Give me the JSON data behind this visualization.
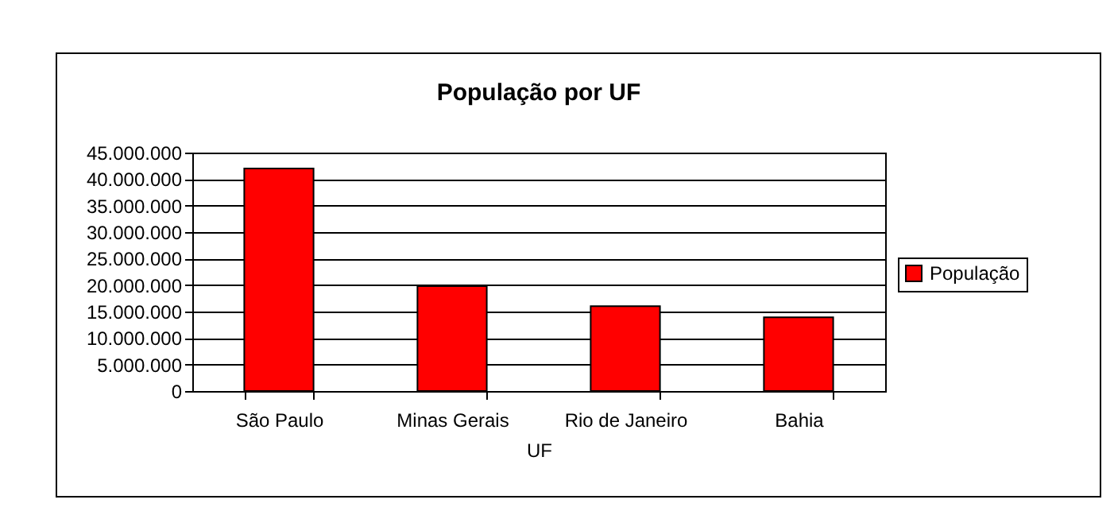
{
  "chart_data": {
    "type": "bar",
    "title": "População por UF",
    "xlabel": "UF",
    "categories": [
      "São Paulo",
      "Minas Gerais",
      "Rio de Janeiro",
      "Bahia"
    ],
    "series": [
      {
        "name": "População",
        "color": "#ff0000",
        "values": [
          42000000,
          19800000,
          16000000,
          13900000
        ]
      }
    ],
    "ylim": [
      0,
      45000000
    ],
    "yticks": [
      0,
      {
        "value": 5000000,
        "label": "5.000.000"
      },
      {
        "value": 10000000,
        "label": "10.000.000"
      },
      {
        "value": 15000000,
        "label": "15.000.000"
      },
      {
        "value": 20000000,
        "label": "20.000.000"
      },
      {
        "value": 25000000,
        "label": "25.000.000"
      },
      {
        "value": 30000000,
        "label": "30.000.000"
      },
      {
        "value": 35000000,
        "label": "35.000.000"
      },
      {
        "value": 40000000,
        "label": "40.000.000"
      },
      {
        "value": 45000000,
        "label": "45.000.000"
      }
    ],
    "grid": "y",
    "legend": "right"
  }
}
